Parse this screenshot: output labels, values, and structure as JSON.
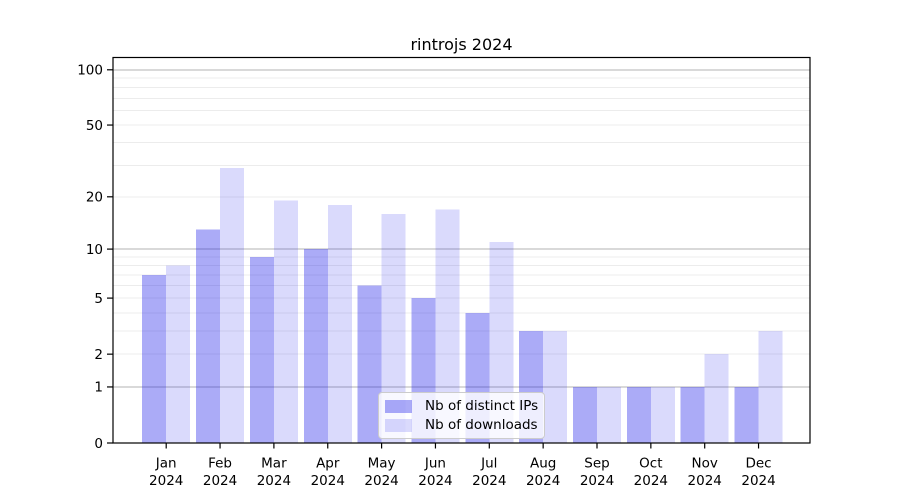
{
  "title": "rintrojs 2024",
  "chart_data": {
    "type": "bar",
    "title": "rintrojs 2024",
    "categories": [
      "Jan 2024",
      "Feb 2024",
      "Mar 2024",
      "Apr 2024",
      "May 2024",
      "Jun 2024",
      "Jul 2024",
      "Aug 2024",
      "Sep 2024",
      "Oct 2024",
      "Nov 2024",
      "Dec 2024"
    ],
    "series": [
      {
        "name": "Nb of distinct IPs",
        "values": [
          7,
          13,
          9,
          10,
          6,
          5,
          4,
          3,
          1,
          1,
          1,
          1
        ],
        "color": "rgba(26,26,234,0.37)",
        "observed_hex": "#a9a9f8"
      },
      {
        "name": "Nb of downloads",
        "values": [
          8,
          29,
          19,
          18,
          16,
          17,
          11,
          3,
          1,
          1,
          2,
          3
        ],
        "color": "rgba(26,26,234,0.16)",
        "observed_hex": "#d9d9f8"
      }
    ],
    "yscale": "log1p",
    "ylim": [
      0,
      117
    ],
    "y_tick_values": [
      0,
      1,
      2,
      5,
      10,
      20,
      50,
      100
    ],
    "grid": "horizontal",
    "legend_position": "lower-center"
  },
  "y_axis": {
    "tick_labels": [
      "100",
      "50",
      "20",
      "10",
      "5",
      "2",
      "1",
      "0"
    ],
    "tick_values": [
      100,
      50,
      20,
      10,
      5,
      2,
      1,
      0
    ],
    "major_grid_values": [
      1,
      10,
      100
    ],
    "minor_grid_values": [
      2,
      3,
      4,
      5,
      6,
      7,
      8,
      9,
      20,
      30,
      40,
      50,
      60,
      70,
      80,
      90
    ]
  },
  "legend": {
    "items": [
      {
        "label": "Nb of distinct IPs"
      },
      {
        "label": "Nb of downloads"
      }
    ]
  },
  "colors": {
    "background": "#ffffff",
    "axis": "#000000",
    "grid_major": "#b3b3b3",
    "grid_minor": "#ececec",
    "legend_border": "#cccccc"
  }
}
